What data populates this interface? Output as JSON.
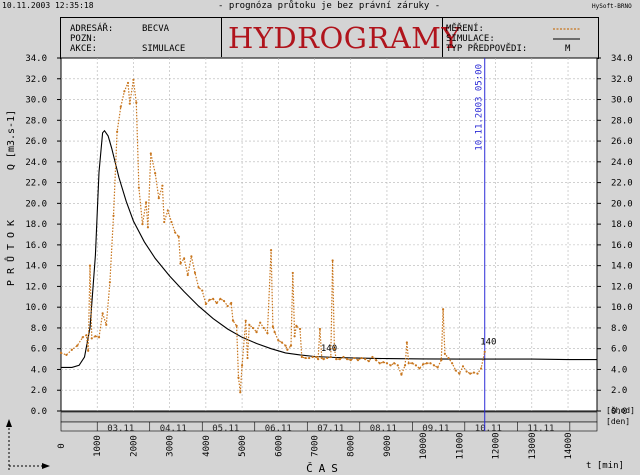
{
  "titlebar": {
    "timestamp": "10.11.2003 12:35:18",
    "disclaimer": "- prognóza průtoku je bez právní záruky -",
    "vendor": "HySoft-BRNO"
  },
  "header": {
    "adresar_label": "ADRESÁŘ:",
    "adresar_value": "BECVA",
    "pozn_label": "POZN:",
    "akce_label": "AKCE:",
    "akce_value": "SIMULACE",
    "brand": "HYDROGRAMY",
    "mereni_label": "MĚŘENÍ:",
    "simulace_label": "SIMULACE:",
    "typ_label": "TYP PŘEDPOVĚDI:",
    "typ_value": "M"
  },
  "colors": {
    "measured": "#c8761e",
    "simulated": "#000000",
    "forecast_line": "#2b2bd6",
    "brand": "#b0141c",
    "background": "#d4d4d4",
    "plot_background": "#ffffff",
    "grid": "#b4b4b4"
  },
  "chart_data": {
    "type": "line",
    "title": "HYDROGRAMY",
    "ylabel": "PRŮTOK",
    "ylabel_unit": "Q [m3.s-1]",
    "xlabel": "ČAS",
    "xlabel_unit": "t [min]",
    "xlim": [
      0,
      14800
    ],
    "ylim": [
      0,
      34
    ],
    "grid": true,
    "legend": "top-right",
    "y_ticks": [
      "0.0",
      "2.0",
      "4.0",
      "6.0",
      "8.0",
      "10.0",
      "12.0",
      "14.0",
      "16.0",
      "18.0",
      "20.0",
      "22.0",
      "24.0",
      "26.0",
      "28.0",
      "30.0",
      "32.0",
      "34.0"
    ],
    "x_ticks": [
      0,
      1000,
      2000,
      3000,
      4000,
      5000,
      6000,
      7000,
      8000,
      9000,
      10000,
      11000,
      12000,
      13000,
      14000
    ],
    "date_row_label": "[šhod]",
    "day_row_label": "[den]",
    "dates": [
      {
        "label": "03.11",
        "x": 1650
      },
      {
        "label": "04.11",
        "x": 3100
      },
      {
        "label": "05.11",
        "x": 4550
      },
      {
        "label": "06.11",
        "x": 6000
      },
      {
        "label": "07.11",
        "x": 7450
      },
      {
        "label": "08.11",
        "x": 8900
      },
      {
        "label": "09.11",
        "x": 10350
      },
      {
        "label": "10.11",
        "x": 11800
      },
      {
        "label": "11.11",
        "x": 13250
      }
    ],
    "forecast_marker": {
      "label": "10.11.2003 05:00",
      "x": 11700
    },
    "annotations": [
      {
        "text": "140",
        "x": 7400,
        "y": 5.6
      },
      {
        "text": "140",
        "x": 11800,
        "y": 6.2
      }
    ],
    "series": [
      {
        "name": "MĚŘENÍ",
        "style": "dotted",
        "points": [
          [
            0,
            5.6
          ],
          [
            150,
            5.4
          ],
          [
            300,
            5.9
          ],
          [
            450,
            6.3
          ],
          [
            600,
            7.1
          ],
          [
            700,
            7.3
          ],
          [
            750,
            5.8
          ],
          [
            800,
            14.0
          ],
          [
            850,
            7.0
          ],
          [
            950,
            7.2
          ],
          [
            1050,
            7.1
          ],
          [
            1150,
            9.4
          ],
          [
            1250,
            8.3
          ],
          [
            1350,
            12.4
          ],
          [
            1450,
            18.8
          ],
          [
            1550,
            26.9
          ],
          [
            1650,
            29.3
          ],
          [
            1750,
            30.8
          ],
          [
            1850,
            31.6
          ],
          [
            1900,
            29.6
          ],
          [
            2000,
            31.9
          ],
          [
            2080,
            29.7
          ],
          [
            2150,
            21.5
          ],
          [
            2250,
            18.0
          ],
          [
            2350,
            20.1
          ],
          [
            2400,
            17.7
          ],
          [
            2480,
            24.8
          ],
          [
            2600,
            22.9
          ],
          [
            2700,
            20.5
          ],
          [
            2800,
            21.7
          ],
          [
            2850,
            18.2
          ],
          [
            2950,
            19.3
          ],
          [
            3050,
            18.2
          ],
          [
            3150,
            17.2
          ],
          [
            3250,
            16.8
          ],
          [
            3300,
            14.2
          ],
          [
            3400,
            14.7
          ],
          [
            3500,
            13.1
          ],
          [
            3600,
            14.9
          ],
          [
            3700,
            13.3
          ],
          [
            3800,
            11.9
          ],
          [
            3900,
            11.6
          ],
          [
            4000,
            10.3
          ],
          [
            4100,
            10.7
          ],
          [
            4200,
            10.8
          ],
          [
            4300,
            10.4
          ],
          [
            4400,
            10.8
          ],
          [
            4500,
            10.6
          ],
          [
            4600,
            10.1
          ],
          [
            4700,
            10.4
          ],
          [
            4750,
            8.7
          ],
          [
            4850,
            8.2
          ],
          [
            4900,
            3.2
          ],
          [
            4950,
            1.8
          ],
          [
            5000,
            4.4
          ],
          [
            5100,
            8.7
          ],
          [
            5150,
            5.1
          ],
          [
            5200,
            8.3
          ],
          [
            5300,
            8.0
          ],
          [
            5400,
            7.6
          ],
          [
            5500,
            8.5
          ],
          [
            5600,
            8.0
          ],
          [
            5700,
            7.5
          ],
          [
            5800,
            15.5
          ],
          [
            5850,
            8.1
          ],
          [
            5900,
            7.6
          ],
          [
            6000,
            6.8
          ],
          [
            6100,
            6.6
          ],
          [
            6200,
            6.3
          ],
          [
            6250,
            5.9
          ],
          [
            6350,
            6.3
          ],
          [
            6400,
            13.3
          ],
          [
            6450,
            7.2
          ],
          [
            6500,
            8.2
          ],
          [
            6600,
            7.9
          ],
          [
            6650,
            5.2
          ],
          [
            6750,
            5.1
          ],
          [
            6850,
            5.1
          ],
          [
            6950,
            5.2
          ],
          [
            7050,
            5.2
          ],
          [
            7100,
            5.0
          ],
          [
            7150,
            7.9
          ],
          [
            7200,
            5.1
          ],
          [
            7250,
            5.0
          ],
          [
            7350,
            5.1
          ],
          [
            7450,
            5.2
          ],
          [
            7500,
            14.5
          ],
          [
            7550,
            6.0
          ],
          [
            7600,
            5.0
          ],
          [
            7700,
            5.0
          ],
          [
            7800,
            5.2
          ],
          [
            7900,
            5.0
          ],
          [
            8000,
            4.9
          ],
          [
            8100,
            5.1
          ],
          [
            8200,
            4.9
          ],
          [
            8300,
            5.1
          ],
          [
            8400,
            5.0
          ],
          [
            8500,
            4.8
          ],
          [
            8600,
            5.2
          ],
          [
            8700,
            4.9
          ],
          [
            8800,
            4.6
          ],
          [
            8900,
            4.7
          ],
          [
            9000,
            4.6
          ],
          [
            9100,
            4.4
          ],
          [
            9200,
            4.6
          ],
          [
            9300,
            4.4
          ],
          [
            9400,
            3.5
          ],
          [
            9500,
            4.4
          ],
          [
            9550,
            6.6
          ],
          [
            9600,
            4.6
          ],
          [
            9700,
            4.6
          ],
          [
            9800,
            4.4
          ],
          [
            9900,
            4.1
          ],
          [
            10000,
            4.5
          ],
          [
            10100,
            4.6
          ],
          [
            10200,
            4.6
          ],
          [
            10300,
            4.4
          ],
          [
            10400,
            4.2
          ],
          [
            10500,
            4.9
          ],
          [
            10550,
            9.8
          ],
          [
            10600,
            5.5
          ],
          [
            10700,
            5.1
          ],
          [
            10800,
            4.6
          ],
          [
            10900,
            3.9
          ],
          [
            11000,
            3.6
          ],
          [
            11100,
            4.3
          ],
          [
            11200,
            3.8
          ],
          [
            11300,
            3.6
          ],
          [
            11400,
            3.7
          ],
          [
            11500,
            3.6
          ],
          [
            11600,
            4.1
          ],
          [
            11700,
            5.7
          ]
        ]
      },
      {
        "name": "SIMULACE",
        "style": "solid",
        "points": [
          [
            0,
            4.2
          ],
          [
            300,
            4.2
          ],
          [
            500,
            4.4
          ],
          [
            650,
            5.2
          ],
          [
            800,
            8.0
          ],
          [
            950,
            15.0
          ],
          [
            1050,
            23.0
          ],
          [
            1150,
            26.8
          ],
          [
            1200,
            27.0
          ],
          [
            1300,
            26.5
          ],
          [
            1400,
            25.3
          ],
          [
            1600,
            22.5
          ],
          [
            1800,
            20.2
          ],
          [
            2000,
            18.3
          ],
          [
            2300,
            16.3
          ],
          [
            2600,
            14.7
          ],
          [
            3000,
            13.0
          ],
          [
            3400,
            11.5
          ],
          [
            3800,
            10.1
          ],
          [
            4200,
            8.9
          ],
          [
            4600,
            7.9
          ],
          [
            5000,
            7.1
          ],
          [
            5400,
            6.5
          ],
          [
            5800,
            6.0
          ],
          [
            6200,
            5.6
          ],
          [
            6600,
            5.4
          ],
          [
            7000,
            5.25
          ],
          [
            7600,
            5.15
          ],
          [
            8200,
            5.1
          ],
          [
            9000,
            5.05
          ],
          [
            10000,
            5.02
          ],
          [
            11000,
            5.0
          ],
          [
            12000,
            5.0
          ],
          [
            13000,
            5.0
          ],
          [
            14000,
            4.95
          ],
          [
            14800,
            4.95
          ]
        ]
      }
    ]
  }
}
